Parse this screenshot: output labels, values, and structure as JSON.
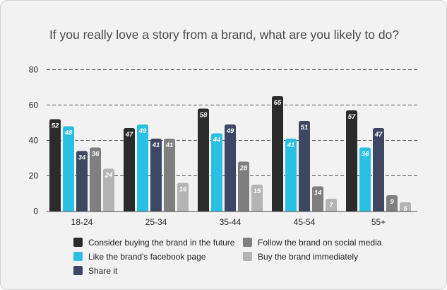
{
  "chart_data": {
    "type": "bar",
    "title": "If you really love a story from a brand, what are you likely to do?",
    "categories": [
      "18-24",
      "25-34",
      "35-44",
      "45-54",
      "55+"
    ],
    "series": [
      {
        "name": "Consider buying the brand in the future",
        "color": "#2b2b2b",
        "values": [
          52,
          47,
          58,
          65,
          57
        ]
      },
      {
        "name": "Like the brand's facebook page",
        "color": "#29c0e3",
        "values": [
          48,
          49,
          44,
          41,
          36
        ]
      },
      {
        "name": "Share it",
        "color": "#3d4663",
        "values": [
          34,
          41,
          49,
          51,
          47
        ]
      },
      {
        "name": "Follow the brand on social media",
        "color": "#7f7f7f",
        "values": [
          36,
          41,
          28,
          14,
          9
        ]
      },
      {
        "name": "Buy the brand immediately",
        "color": "#b4b4b4",
        "values": [
          24,
          16,
          15,
          7,
          5
        ]
      }
    ],
    "data_labels": [
      [
        "52",
        "48",
        "34",
        "36",
        "24"
      ],
      [
        "47",
        "49",
        "41",
        "41",
        "16"
      ],
      [
        "58",
        "44",
        "49",
        "28",
        "15"
      ],
      [
        "65",
        "41",
        "51",
        "14",
        "7"
      ],
      [
        "57",
        "36",
        "47",
        "9",
        "5"
      ]
    ],
    "bar_order": [
      "Consider buying the brand in the future",
      "Like the brand's facebook page",
      "Share it",
      "Follow the brand on social media",
      "Buy the brand immediately"
    ],
    "y_ticks": [
      "0",
      "20",
      "40",
      "60",
      "80"
    ],
    "ylim": [
      0,
      80
    ],
    "grid": true,
    "legend_position": "bottom"
  },
  "legend": {
    "items": [
      {
        "label": "Consider buying the brand in the future",
        "color": "#2b2b2b"
      },
      {
        "label": "Follow the brand on social media",
        "color": "#7f7f7f"
      },
      {
        "label": "Like the brand's facebook page",
        "color": "#29c0e3"
      },
      {
        "label": "Buy the brand immediately",
        "color": "#b4b4b4"
      },
      {
        "label": "Share it",
        "color": "#3d4663"
      }
    ]
  }
}
